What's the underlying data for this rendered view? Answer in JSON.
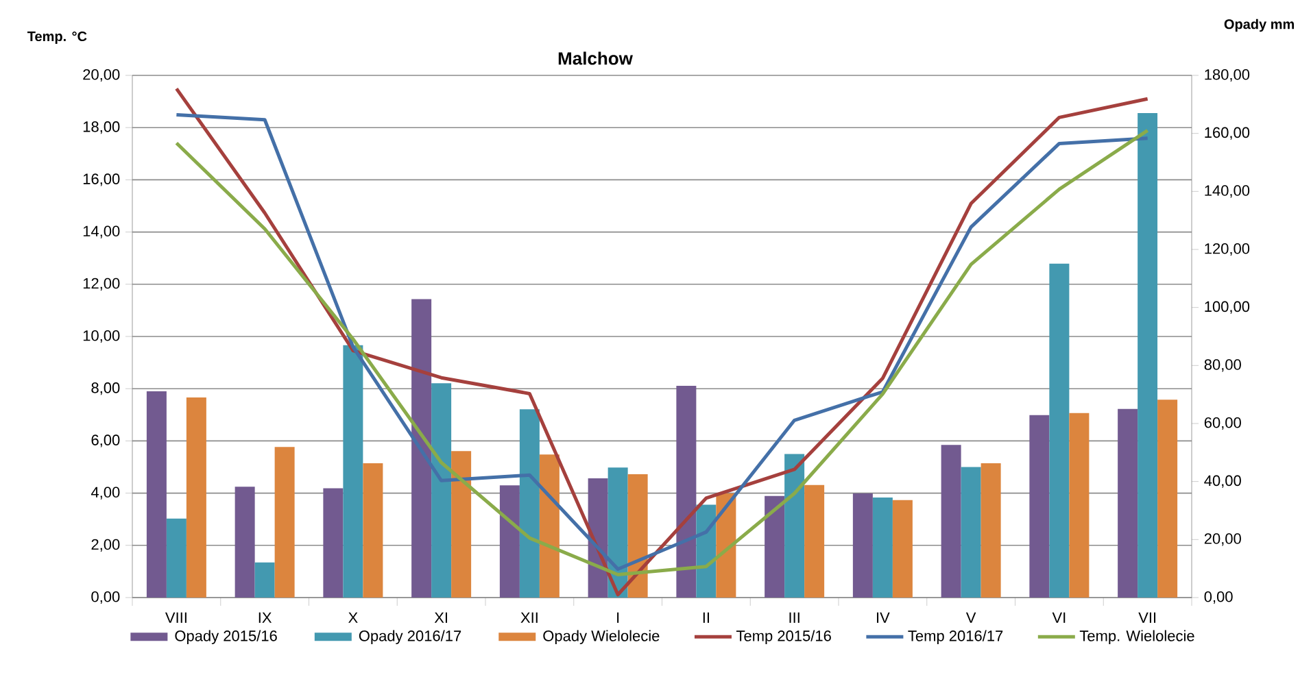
{
  "chart_data": {
    "type": "bar",
    "title": "Malchow",
    "ylabel": "Temp. °C",
    "y2label": "Opady mm",
    "categories": [
      "VIII",
      "IX",
      "X",
      "XI",
      "XII",
      "I",
      "II",
      "III",
      "IV",
      "V",
      "VI",
      "VII"
    ],
    "series": [
      {
        "name": "Opady 2015/16",
        "axis": "y2",
        "color": "#725a90",
        "values": [
          71.1,
          38.2,
          37.7,
          102.9,
          38.7,
          41.1,
          73.0,
          35.0,
          35.9,
          52.6,
          62.9,
          65.0
        ]
      },
      {
        "name": "Opady 2016/17",
        "axis": "y2",
        "color": "#4399b0",
        "values": [
          27.2,
          12.1,
          87.0,
          73.9,
          64.9,
          44.8,
          32.0,
          49.5,
          34.5,
          45.0,
          115.1,
          167.0
        ]
      },
      {
        "name": "Opady Wielolecie",
        "axis": "y2",
        "color": "#dc853e",
        "values": [
          69.0,
          51.9,
          46.3,
          50.5,
          49.3,
          42.5,
          35.9,
          38.8,
          33.6,
          46.3,
          63.6,
          68.2
        ]
      },
      {
        "name": "Temp 2015/16",
        "type": "line",
        "color": "#a5403d",
        "values": [
          19.49,
          14.73,
          9.46,
          8.42,
          7.81,
          0.11,
          3.81,
          4.91,
          8.4,
          15.09,
          18.39,
          19.1
        ]
      },
      {
        "name": "Temp 2016/17",
        "type": "line",
        "color": "#4470a8",
        "values": [
          18.49,
          18.3,
          9.6,
          4.48,
          4.69,
          1.09,
          2.51,
          6.79,
          7.88,
          14.19,
          17.39,
          17.59
        ]
      },
      {
        "name": "Temp. Wielolecie",
        "type": "line",
        "color": "#8aab4a",
        "values": [
          17.41,
          14.12,
          9.9,
          5.17,
          2.28,
          0.88,
          1.19,
          3.99,
          7.8,
          12.76,
          15.64,
          17.89
        ]
      }
    ],
    "ylim": [
      0,
      20
    ],
    "yticks": [
      {
        "value": 0,
        "label": "0,00"
      },
      {
        "value": 2,
        "label": "2,00"
      },
      {
        "value": 4,
        "label": "4,00"
      },
      {
        "value": 6,
        "label": "6,00"
      },
      {
        "value": 8,
        "label": "8,00"
      },
      {
        "value": 10,
        "label": "10,00"
      },
      {
        "value": 12,
        "label": "12,00"
      },
      {
        "value": 14,
        "label": "14,00"
      },
      {
        "value": 16,
        "label": "16,00"
      },
      {
        "value": 18,
        "label": "18,00"
      },
      {
        "value": 20,
        "label": "20,00"
      }
    ],
    "y2lim": [
      0,
      180
    ],
    "y2ticks": [
      {
        "value": 0,
        "label": "0,00"
      },
      {
        "value": 20,
        "label": "20,00"
      },
      {
        "value": 40,
        "label": "40,00"
      },
      {
        "value": 60,
        "label": "60,00"
      },
      {
        "value": 80,
        "label": "80,00"
      },
      {
        "value": 100,
        "label": "100,00"
      },
      {
        "value": 120,
        "label": "120,00"
      },
      {
        "value": 140,
        "label": "140,00"
      },
      {
        "value": 160,
        "label": "160,00"
      },
      {
        "value": 180,
        "label": "180,00"
      }
    ],
    "grid": "y",
    "legend": "bottom",
    "marker": "none",
    "line_style": "solid"
  }
}
